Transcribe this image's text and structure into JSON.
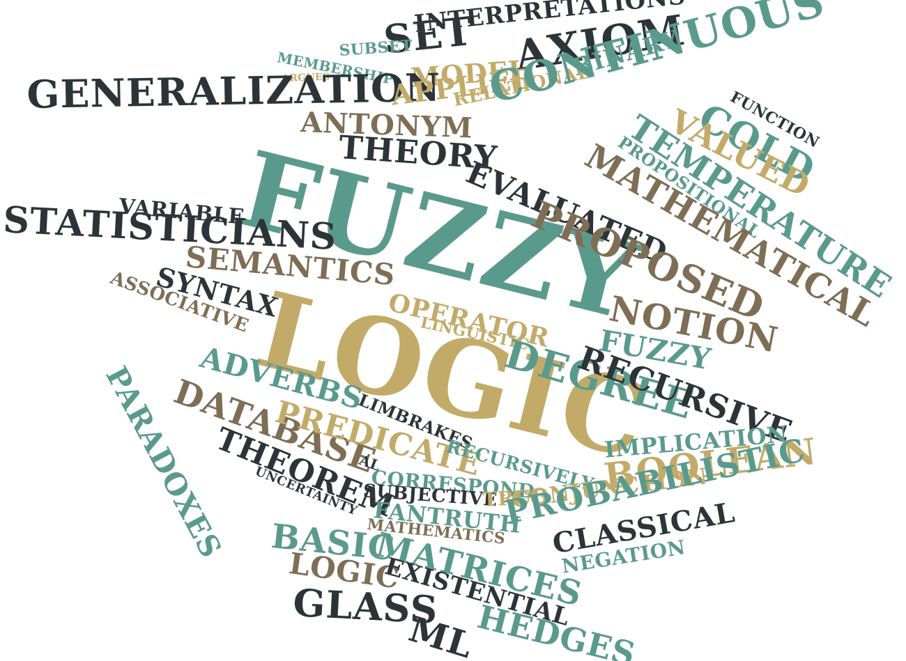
{
  "palette": {
    "teal": "#5a9a8d",
    "dark": "#2c3438",
    "gold": "#c2aa68",
    "brown": "#7d6e55",
    "background": "#ffffff"
  },
  "words": [
    {
      "text": "SET",
      "color": "dark"
    },
    {
      "text": "INTERPRETATIONS",
      "color": "dark"
    },
    {
      "text": "SUBSET",
      "color": "teal"
    },
    {
      "text": "MEMBERSHIP",
      "color": "teal"
    },
    {
      "text": "ARGUES",
      "color": "gold"
    },
    {
      "text": "MODEL",
      "color": "gold"
    },
    {
      "text": "AXIOM",
      "color": "dark"
    },
    {
      "text": "BINARY",
      "color": "teal"
    },
    {
      "text": "GENERALIZATION",
      "color": "dark"
    },
    {
      "text": "APPLIED",
      "color": "gold"
    },
    {
      "text": "RELATIONAL",
      "color": "gold"
    },
    {
      "text": "CONTINUOUS",
      "color": "teal"
    },
    {
      "text": "FUNCTION",
      "color": "dark"
    },
    {
      "text": "ANTONYM",
      "color": "brown"
    },
    {
      "text": "COLD",
      "color": "teal"
    },
    {
      "text": "VALUED",
      "color": "gold"
    },
    {
      "text": "TEMPERATURE",
      "color": "teal"
    },
    {
      "text": "PROPOSITIONAL",
      "color": "teal"
    },
    {
      "text": "THEORY",
      "color": "dark"
    },
    {
      "text": "MATHEMATICAL",
      "color": "brown"
    },
    {
      "text": "FUZZY",
      "color": "teal"
    },
    {
      "text": "EVALUATED",
      "color": "dark"
    },
    {
      "text": "PROPOSED",
      "color": "brown"
    },
    {
      "text": "VARIABLE",
      "color": "dark"
    },
    {
      "text": "STATISTICIANS",
      "color": "dark"
    },
    {
      "text": "SEMANTICS",
      "color": "brown"
    },
    {
      "text": "SYNTAX",
      "color": "dark"
    },
    {
      "text": "ASSOCIATIVE",
      "color": "brown"
    },
    {
      "text": "LOGIC",
      "color": "gold"
    },
    {
      "text": "OPERATOR",
      "color": "gold"
    },
    {
      "text": "LINGUISTIC",
      "color": "gold"
    },
    {
      "text": "NOTION",
      "color": "brown"
    },
    {
      "text": "FUZZY",
      "color": "teal"
    },
    {
      "text": "DEGREE",
      "color": "teal"
    },
    {
      "text": "RECURSIVE",
      "color": "dark"
    },
    {
      "text": "ADVERBS",
      "color": "teal"
    },
    {
      "text": "LIMBRAKES",
      "color": "dark"
    },
    {
      "text": "PARADOXES",
      "color": "teal"
    },
    {
      "text": "DATABASE",
      "color": "brown"
    },
    {
      "text": "PREDICATE",
      "color": "gold"
    },
    {
      "text": "RECURSIVELY",
      "color": "teal"
    },
    {
      "text": "IMPLICATION",
      "color": "teal"
    },
    {
      "text": "THEOREM",
      "color": "dark"
    },
    {
      "text": "AL",
      "color": "dark"
    },
    {
      "text": "CORRESPOND",
      "color": "teal"
    },
    {
      "text": "BOOLEAN",
      "color": "gold"
    },
    {
      "text": "UNCERTAINTY",
      "color": "dark"
    },
    {
      "text": "SUBJECTIVE",
      "color": "dark"
    },
    {
      "text": "TRUE",
      "color": "gold"
    },
    {
      "text": "FANTRUTH",
      "color": "teal"
    },
    {
      "text": "CONJUNCTION",
      "color": "gold"
    },
    {
      "text": "PROBABILISTIC",
      "color": "teal"
    },
    {
      "text": "MATHEMATICS",
      "color": "brown"
    },
    {
      "text": "BASIC",
      "color": "teal"
    },
    {
      "text": "MATRICES",
      "color": "teal"
    },
    {
      "text": "CLASSICAL",
      "color": "dark"
    },
    {
      "text": "LOGIC",
      "color": "brown"
    },
    {
      "text": "EXISTENTIAL",
      "color": "dark"
    },
    {
      "text": "NEGATION",
      "color": "teal"
    },
    {
      "text": "GLASS",
      "color": "dark"
    },
    {
      "text": "ML",
      "color": "dark"
    },
    {
      "text": "HEDGES",
      "color": "teal"
    }
  ]
}
